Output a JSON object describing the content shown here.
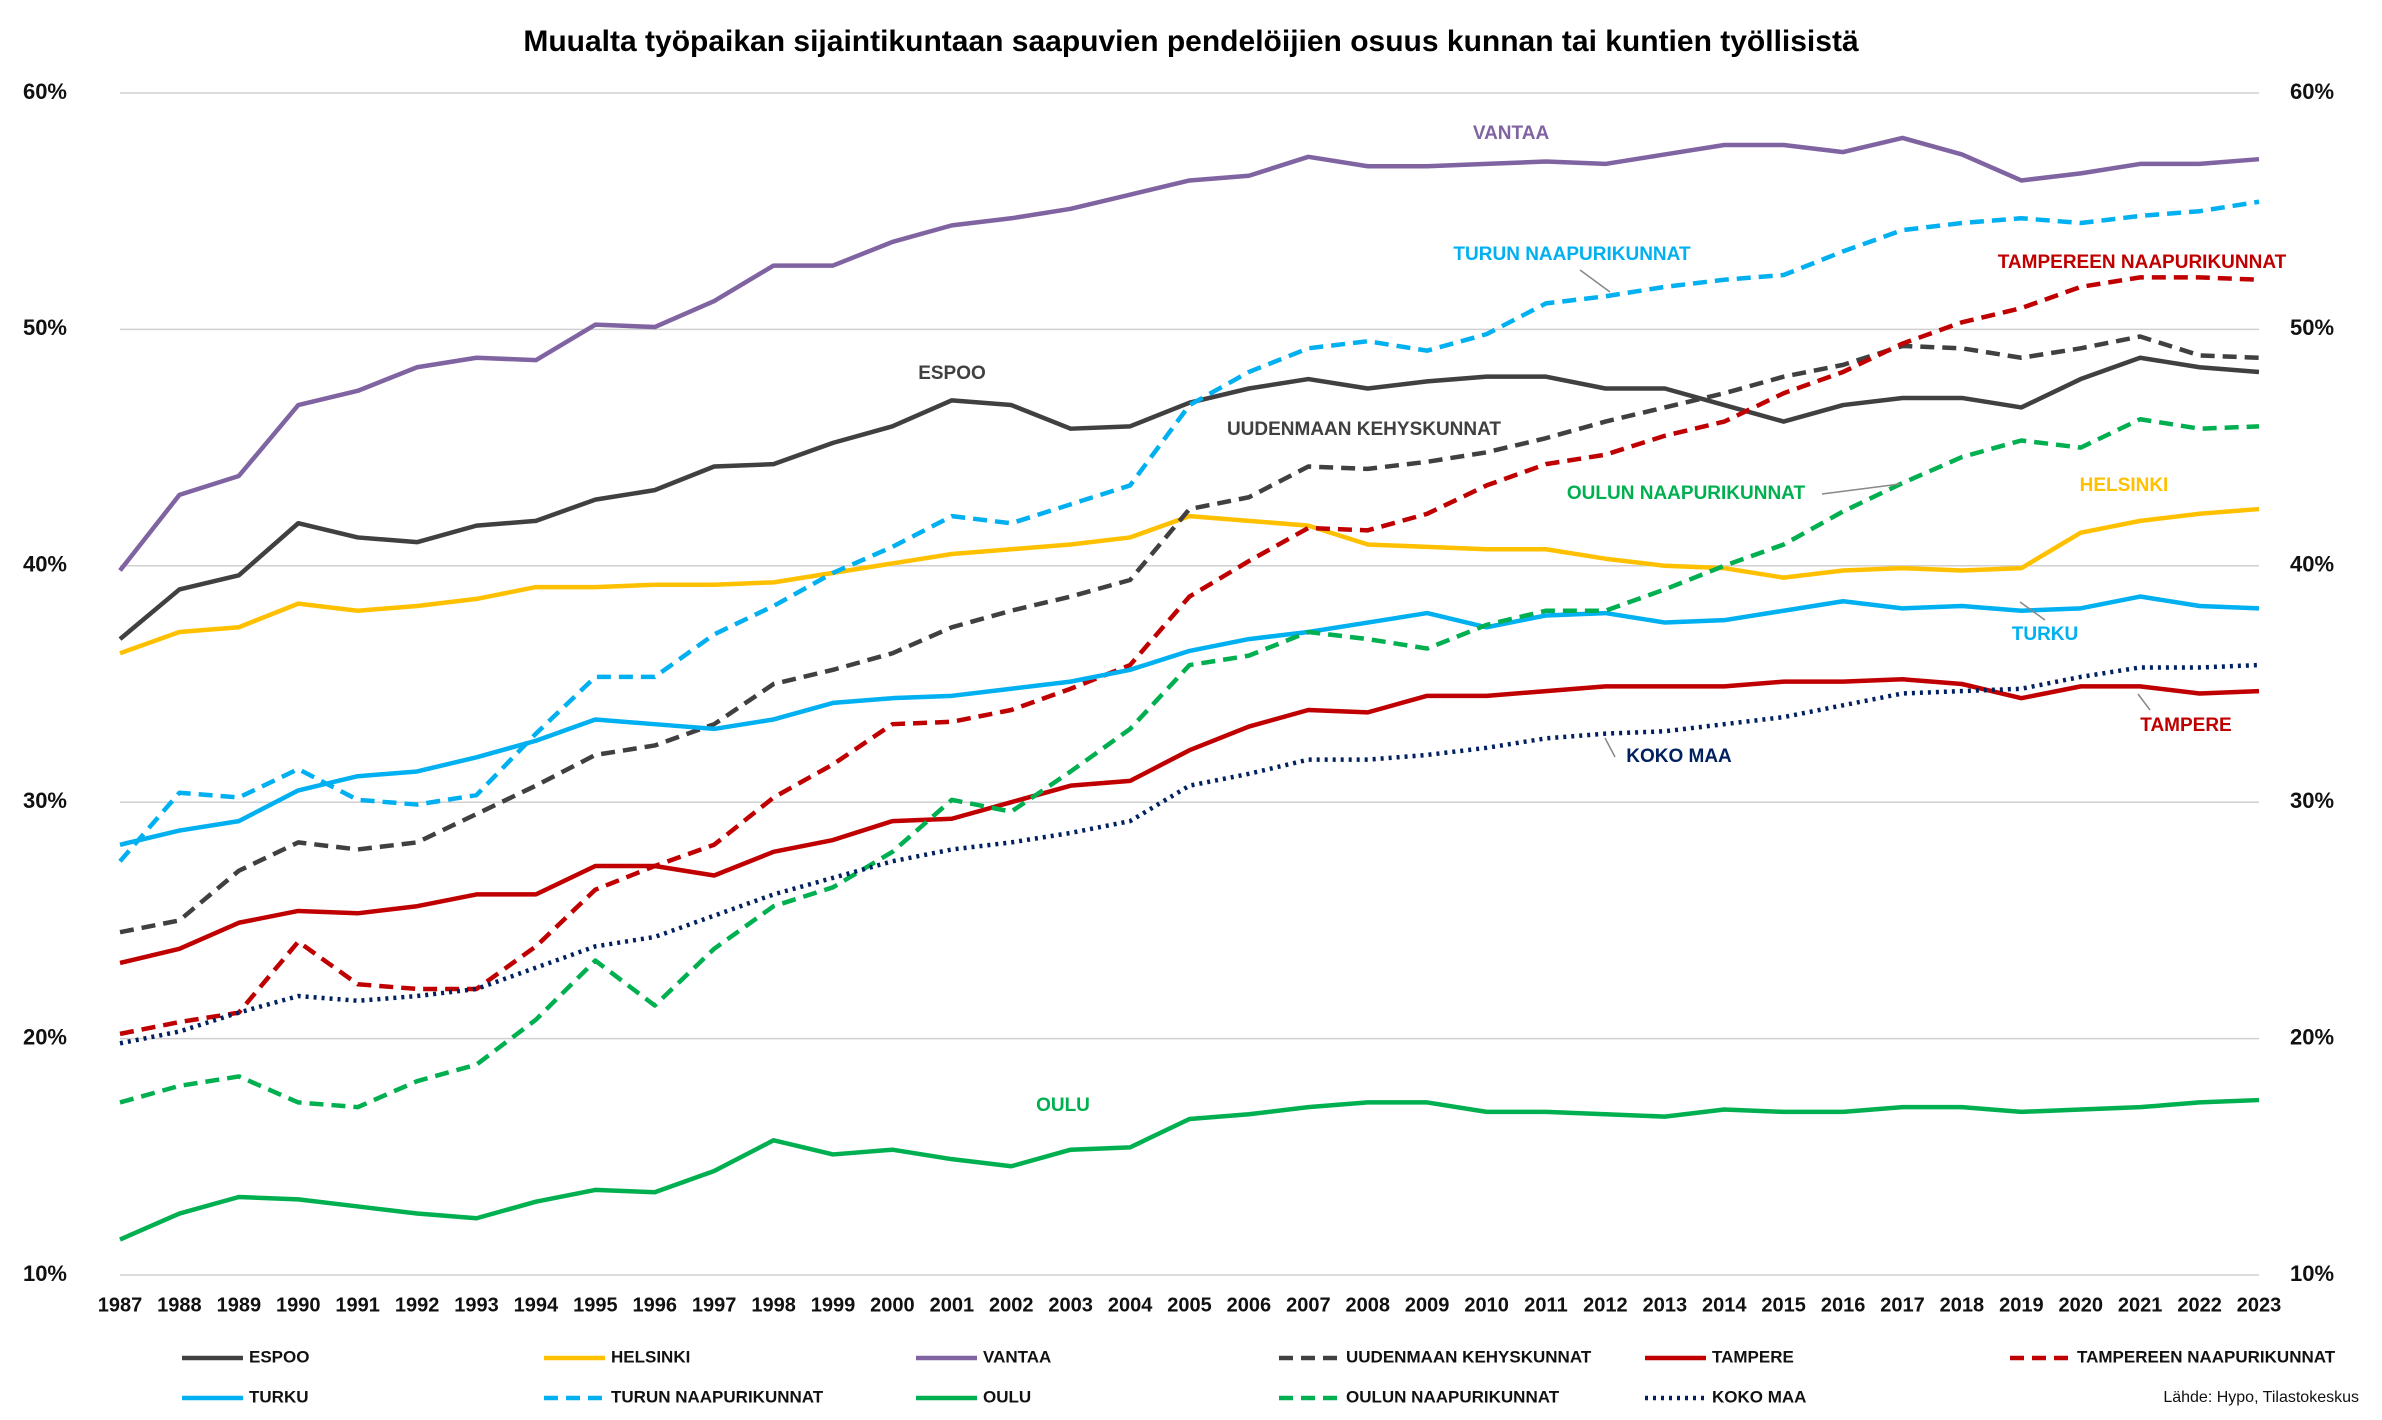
{
  "chart_data": {
    "type": "line",
    "title": "Muualta työpaikan sijaintikuntaan saapuvien pendelöijien osuus kunnan tai kuntien työllisistä",
    "source": "Lähde: Hypo, Tilastokeskus",
    "x": [
      1987,
      1988,
      1989,
      1990,
      1991,
      1992,
      1993,
      1994,
      1995,
      1996,
      1997,
      1998,
      1999,
      2000,
      2001,
      2002,
      2003,
      2004,
      2005,
      2006,
      2007,
      2008,
      2009,
      2010,
      2011,
      2012,
      2013,
      2014,
      2015,
      2016,
      2017,
      2018,
      2019,
      2020,
      2021,
      2022,
      2023
    ],
    "xlim": [
      1987,
      2023
    ],
    "ylim": [
      10,
      60
    ],
    "yticks": [
      {
        "value": 10,
        "label": "10%"
      },
      {
        "value": 20,
        "label": "20%"
      },
      {
        "value": 30,
        "label": "30%"
      },
      {
        "value": 40,
        "label": "40%"
      },
      {
        "value": 50,
        "label": "50%"
      },
      {
        "value": 60,
        "label": "60%"
      }
    ],
    "y2lim": [
      10,
      60
    ],
    "y2ticks": [
      {
        "value": 10,
        "label": "10%"
      },
      {
        "value": 20,
        "label": "20%"
      },
      {
        "value": 30,
        "label": "30%"
      },
      {
        "value": 40,
        "label": "40%"
      },
      {
        "value": 50,
        "label": "50%"
      },
      {
        "value": 60,
        "label": "60%"
      }
    ],
    "grid": true,
    "legend": "bottom",
    "series": [
      {
        "name": "ESPOO",
        "color": "#404040",
        "dash": "solid",
        "values": [
          36.9,
          39.0,
          39.6,
          41.8,
          41.2,
          41.0,
          41.7,
          41.9,
          42.8,
          43.2,
          44.2,
          44.3,
          45.2,
          45.9,
          47.0,
          46.8,
          45.8,
          45.9,
          46.9,
          47.5,
          47.9,
          47.5,
          47.8,
          48.0,
          48.0,
          47.5,
          47.5,
          46.8,
          46.1,
          46.8,
          47.1,
          47.1,
          46.7,
          47.9,
          48.8,
          48.4,
          48.2
        ]
      },
      {
        "name": "HELSINKI",
        "color": "#ffc000",
        "dash": "solid",
        "values": [
          36.3,
          37.2,
          37.4,
          38.4,
          38.1,
          38.3,
          38.6,
          39.1,
          39.1,
          39.2,
          39.2,
          39.3,
          39.7,
          40.1,
          40.5,
          40.7,
          40.9,
          41.2,
          42.1,
          41.9,
          41.7,
          40.9,
          40.8,
          40.7,
          40.7,
          40.3,
          40.0,
          39.9,
          39.5,
          39.8,
          39.9,
          39.8,
          39.9,
          41.4,
          41.9,
          42.2,
          42.4
        ]
      },
      {
        "name": "VANTAA",
        "color": "#8064a2",
        "dash": "solid",
        "values": [
          39.8,
          43.0,
          43.8,
          46.8,
          47.4,
          48.4,
          48.8,
          48.7,
          50.2,
          50.1,
          51.2,
          52.7,
          52.7,
          53.7,
          54.4,
          54.7,
          55.1,
          55.7,
          56.3,
          56.5,
          57.3,
          56.9,
          56.9,
          57.0,
          57.1,
          57.0,
          57.4,
          57.8,
          57.8,
          57.5,
          58.1,
          57.4,
          56.3,
          56.6,
          57.0,
          57.0,
          57.2
        ]
      },
      {
        "name": "UUDENMAAN KEHYSKUNNAT",
        "color": "#404040",
        "dash": "dashed",
        "values": [
          24.5,
          25.0,
          27.1,
          28.3,
          28.0,
          28.3,
          29.5,
          30.7,
          32.0,
          32.4,
          33.3,
          35.0,
          35.6,
          36.3,
          37.4,
          38.1,
          38.7,
          39.4,
          42.4,
          42.9,
          44.2,
          44.1,
          44.4,
          44.8,
          45.4,
          46.1,
          46.7,
          47.3,
          48.0,
          48.5,
          49.3,
          49.2,
          48.8,
          49.2,
          49.7,
          48.9,
          48.8
        ]
      },
      {
        "name": "TAMPERE",
        "color": "#c00000",
        "dash": "solid",
        "values": [
          23.2,
          23.8,
          24.9,
          25.4,
          25.3,
          25.6,
          26.1,
          26.1,
          27.3,
          27.3,
          26.9,
          27.9,
          28.4,
          29.2,
          29.3,
          30.0,
          30.7,
          30.9,
          32.2,
          33.2,
          33.9,
          33.8,
          34.5,
          34.5,
          34.7,
          34.9,
          34.9,
          34.9,
          35.1,
          35.1,
          35.2,
          35.0,
          34.4,
          34.9,
          34.9,
          34.6,
          34.7
        ]
      },
      {
        "name": "TAMPEREEN NAAPURIKUNNAT",
        "color": "#c00000",
        "dash": "dashed",
        "values": [
          20.2,
          20.7,
          21.1,
          24.1,
          22.3,
          22.1,
          22.1,
          23.9,
          26.3,
          27.3,
          28.2,
          30.2,
          31.6,
          33.3,
          33.4,
          33.9,
          34.8,
          35.8,
          38.7,
          40.2,
          41.6,
          41.5,
          42.2,
          43.4,
          44.3,
          44.7,
          45.5,
          46.1,
          47.3,
          48.2,
          49.4,
          50.3,
          50.9,
          51.8,
          52.2,
          52.2,
          52.1
        ]
      },
      {
        "name": "TURKU",
        "color": "#00b0f0",
        "dash": "solid",
        "values": [
          28.2,
          28.8,
          29.2,
          30.5,
          31.1,
          31.3,
          31.9,
          32.6,
          33.5,
          33.3,
          33.1,
          33.5,
          34.2,
          34.4,
          34.5,
          34.8,
          35.1,
          35.6,
          36.4,
          36.9,
          37.2,
          37.6,
          38.0,
          37.4,
          37.9,
          38.0,
          37.6,
          37.7,
          38.1,
          38.5,
          38.2,
          38.3,
          38.1,
          38.2,
          38.7,
          38.3,
          38.2
        ]
      },
      {
        "name": "TURUN NAAPURIKUNNAT",
        "color": "#00b0f0",
        "dash": "dashed",
        "values": [
          27.5,
          30.4,
          30.2,
          31.4,
          30.1,
          29.9,
          30.3,
          32.9,
          35.3,
          35.3,
          37.1,
          38.3,
          39.7,
          40.8,
          42.1,
          41.8,
          42.6,
          43.4,
          46.8,
          48.2,
          49.2,
          49.5,
          49.1,
          49.8,
          51.1,
          51.4,
          51.8,
          52.1,
          52.3,
          53.3,
          54.2,
          54.5,
          54.7,
          54.5,
          54.8,
          55.0,
          55.4
        ]
      },
      {
        "name": "OULU",
        "color": "#00b050",
        "dash": "solid",
        "values": [
          11.5,
          12.6,
          13.3,
          13.2,
          12.9,
          12.6,
          12.4,
          13.1,
          13.6,
          13.5,
          14.4,
          15.7,
          15.1,
          15.3,
          14.9,
          14.6,
          15.3,
          15.4,
          16.6,
          16.8,
          17.1,
          17.3,
          17.3,
          16.9,
          16.9,
          16.8,
          16.7,
          17.0,
          16.9,
          16.9,
          17.1,
          17.1,
          16.9,
          17.0,
          17.1,
          17.3,
          17.4
        ]
      },
      {
        "name": "OULUN NAAPURIKUNNAT",
        "color": "#00b050",
        "dash": "dashed",
        "values": [
          17.3,
          18.0,
          18.4,
          17.3,
          17.1,
          18.2,
          18.9,
          20.8,
          23.3,
          21.4,
          23.8,
          25.6,
          26.4,
          27.9,
          30.1,
          29.6,
          31.3,
          33.1,
          35.8,
          36.2,
          37.2,
          36.9,
          36.5,
          37.5,
          38.1,
          38.1,
          39.0,
          40.0,
          40.9,
          42.3,
          43.5,
          44.6,
          45.3,
          45.0,
          46.2,
          45.8,
          45.9
        ]
      },
      {
        "name": "KOKO MAA",
        "color": "#002060",
        "dash": "dotted",
        "values": [
          19.8,
          20.3,
          21.1,
          21.8,
          21.6,
          21.8,
          22.1,
          23.0,
          23.9,
          24.3,
          25.2,
          26.1,
          26.8,
          27.5,
          28.0,
          28.3,
          28.7,
          29.2,
          30.7,
          31.2,
          31.8,
          31.8,
          32.0,
          32.3,
          32.7,
          32.9,
          33.0,
          33.3,
          33.6,
          34.1,
          34.6,
          34.7,
          34.8,
          35.3,
          35.7,
          35.7,
          35.8
        ]
      }
    ]
  }
}
